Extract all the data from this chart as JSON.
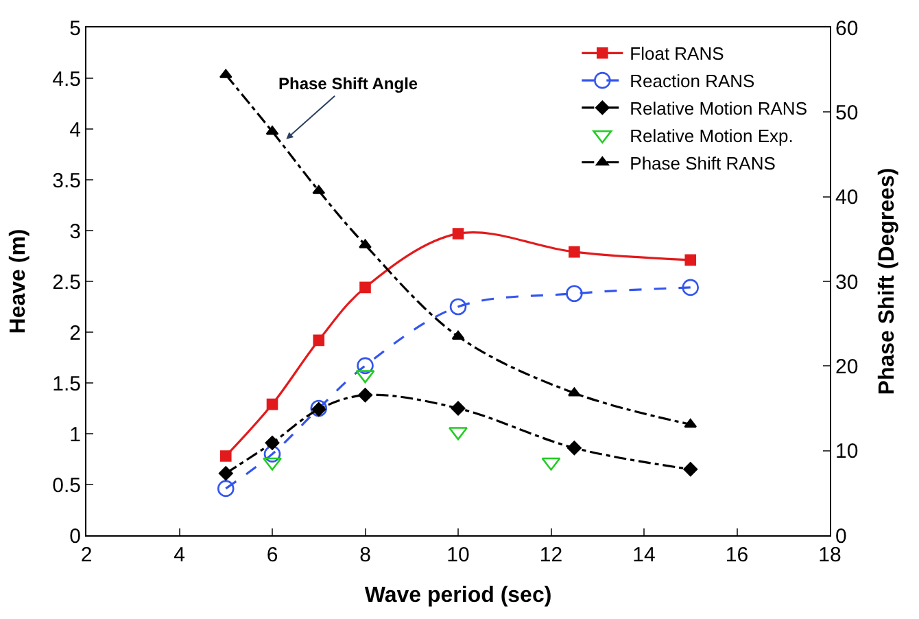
{
  "chart_data": {
    "type": "line",
    "xlabel": "Wave period (sec)",
    "ylabel": "Heave (m)",
    "y2label": "Phase Shift (Degrees)",
    "xlim": [
      2,
      18
    ],
    "xticks": [
      2,
      4,
      6,
      8,
      10,
      12,
      14,
      16,
      18
    ],
    "ylim": [
      0,
      5
    ],
    "yticks": [
      0,
      0.5,
      1,
      1.5,
      2,
      2.5,
      3,
      3.5,
      4,
      4.5,
      5
    ],
    "y2lim": [
      0,
      60
    ],
    "y2ticks": [
      0,
      10,
      20,
      30,
      40,
      50,
      60
    ],
    "legend": "top right",
    "annotations": [
      {
        "text": "Phase Shift Angle",
        "x": 6.3,
        "y": 3.9
      }
    ],
    "series": [
      {
        "name": "Float RANS",
        "color": "#e31a1c",
        "marker": "square",
        "line_style": "solid",
        "x": [
          5,
          6,
          7,
          8,
          10,
          12.5,
          15
        ],
        "values": [
          0.78,
          1.29,
          1.92,
          2.44,
          2.97,
          2.79,
          2.71
        ]
      },
      {
        "name": "Reaction RANS",
        "color": "#3355ee",
        "marker": "circle",
        "line_style": "dashed",
        "x": [
          5,
          6,
          7,
          8,
          10,
          12.5,
          15
        ],
        "values": [
          0.46,
          0.8,
          1.25,
          1.67,
          2.25,
          2.38,
          2.44
        ]
      },
      {
        "name": "Relative Motion RANS",
        "color": "#000000",
        "marker": "diamond",
        "line_style": "dashdot",
        "x": [
          5,
          6,
          7,
          8,
          10,
          12.5,
          15
        ],
        "values": [
          0.61,
          0.91,
          1.24,
          1.38,
          1.25,
          0.86,
          0.65
        ]
      },
      {
        "name": "Relative Motion Exp.",
        "type": "scatter",
        "color": "#22cc22",
        "marker": "triangle-down",
        "x": [
          6,
          8,
          10,
          12
        ],
        "values": [
          0.72,
          1.58,
          1.02,
          0.72
        ]
      },
      {
        "name": "Phase Shift RANS",
        "color": "#000000",
        "marker": "triangle",
        "line_style": "dashdot",
        "axis": "y2",
        "x": [
          5,
          6,
          7,
          8,
          10,
          12.5,
          15
        ],
        "values": [
          54.4,
          47.7,
          40.7,
          34.3,
          23.5,
          16.8,
          13.1
        ]
      }
    ]
  }
}
